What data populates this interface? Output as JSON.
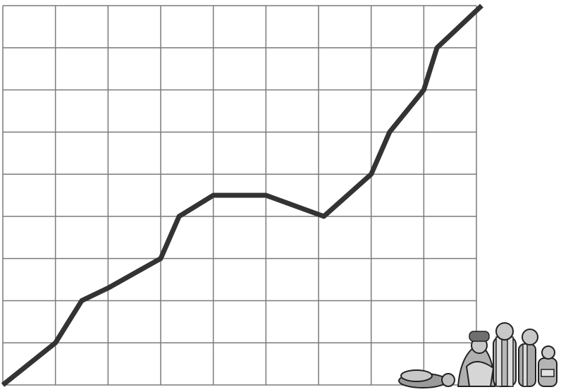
{
  "chart_data": {
    "type": "line",
    "title": "",
    "xlabel": "",
    "ylabel": "",
    "grid": true,
    "x": [
      0,
      1,
      1.5,
      2,
      3,
      3.35,
      4,
      5,
      6.1,
      7,
      7.35,
      8,
      8.25,
      9.1
    ],
    "values": [
      0,
      1,
      2,
      2.3,
      3,
      4,
      4.5,
      4.5,
      4,
      5,
      6,
      7,
      8,
      9
    ],
    "xlim": [
      0,
      9
    ],
    "ylim": [
      0,
      9
    ],
    "line_color": "#333333",
    "grid_color": "#7a7a7a"
  },
  "decoration": {
    "icon": "group-of-dejected-people-illustration"
  }
}
